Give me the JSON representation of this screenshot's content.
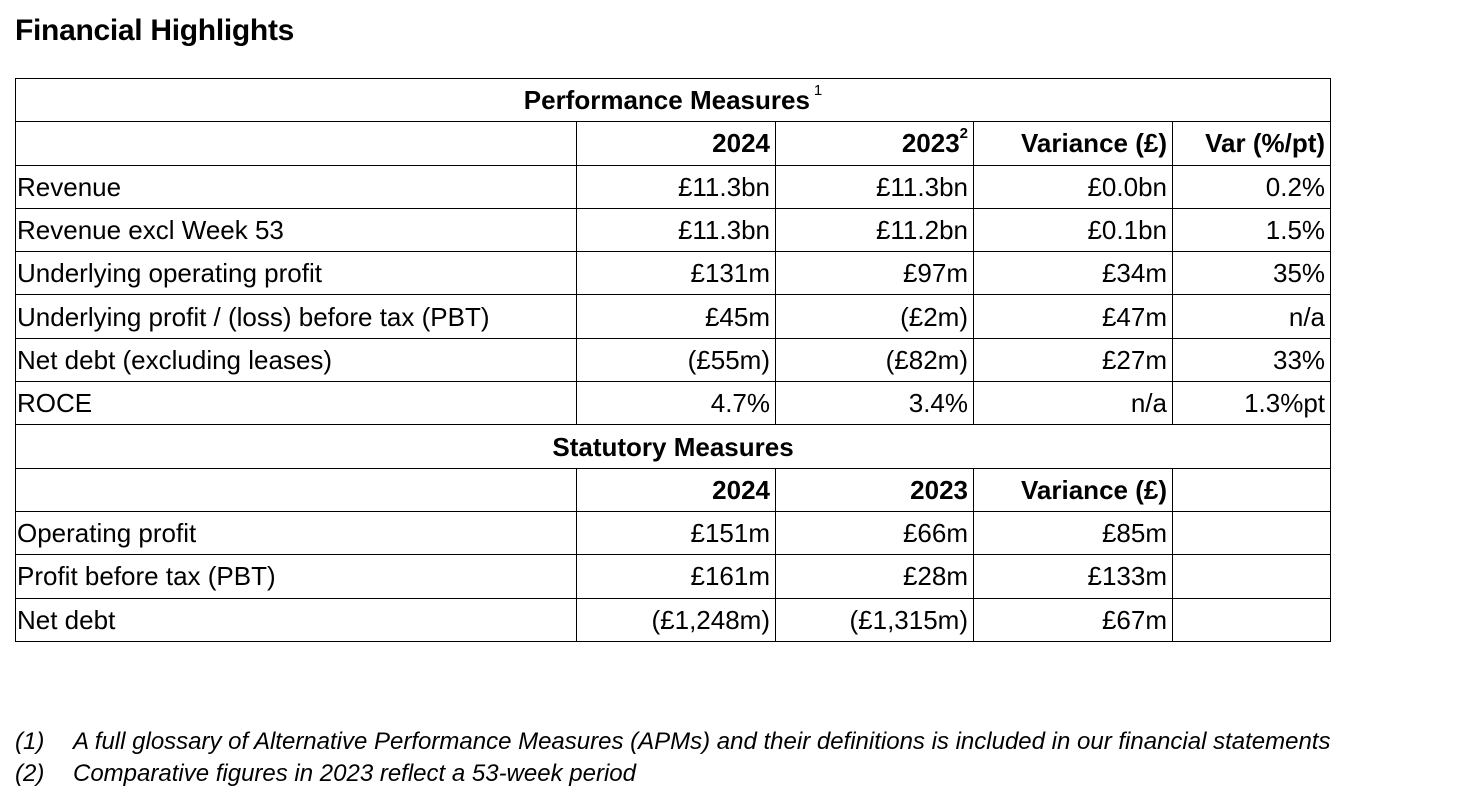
{
  "title": "Financial Highlights",
  "performance": {
    "section_title": "Performance Measures",
    "section_note": "1",
    "headers": [
      "2024",
      "2023",
      "Variance (£)",
      "Var (%/pt)"
    ],
    "header_2023_note": "2",
    "rows": [
      {
        "label": "Revenue",
        "cells": [
          "£11.3bn",
          "£11.3bn",
          "£0.0bn",
          "0.2%"
        ]
      },
      {
        "label": "Revenue excl Week 53",
        "cells": [
          "£11.3bn",
          "£11.2bn",
          "£0.1bn",
          "1.5%"
        ]
      },
      {
        "label": "Underlying operating profit",
        "cells": [
          "£131m",
          "£97m",
          "£34m",
          "35%"
        ]
      },
      {
        "label": "Underlying profit / (loss) before tax (PBT)",
        "cells": [
          "£45m",
          "(£2m)",
          "£47m",
          "n/a"
        ]
      },
      {
        "label": "Net debt (excluding leases)",
        "cells": [
          "(£55m)",
          "(£82m)",
          "£27m",
          "33%"
        ]
      },
      {
        "label": "ROCE",
        "cells": [
          "4.7%",
          "3.4%",
          "n/a",
          "1.3%pt"
        ]
      }
    ]
  },
  "statutory": {
    "section_title": "Statutory Measures",
    "headers": [
      "2024",
      "2023",
      "Variance (£)",
      ""
    ],
    "rows": [
      {
        "label": "Operating profit",
        "cells": [
          "£151m",
          "£66m",
          "£85m",
          ""
        ]
      },
      {
        "label": "Profit before tax (PBT)",
        "cells": [
          "£161m",
          "£28m",
          "£133m",
          ""
        ]
      },
      {
        "label": "Net debt",
        "cells": [
          "(£1,248m)",
          "(£1,315m)",
          "£67m",
          ""
        ]
      }
    ]
  },
  "footnotes": [
    {
      "num": "(1)",
      "text": "A full glossary of Alternative Performance Measures (APMs) and their definitions is included in our financial statements"
    },
    {
      "num": "(2)",
      "text": "Comparative figures in 2023 reflect a 53-week period"
    }
  ]
}
